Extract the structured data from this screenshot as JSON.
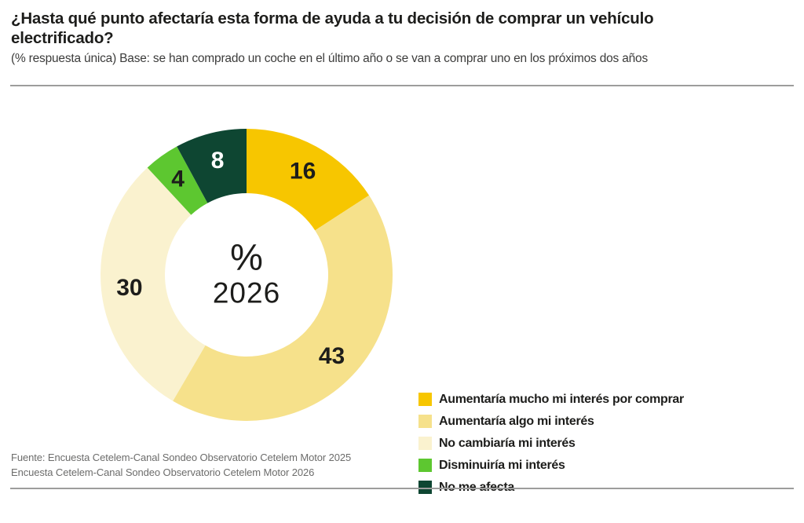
{
  "header": {
    "title": "¿Hasta qué punto afectaría esta forma de ayuda a tu decisión de comprar un vehículo electrificado?",
    "subtitle": "(% respuesta única) Base: se han comprado un coche en el último año o se van a comprar uno en los próximos dos años"
  },
  "chart_data": {
    "type": "pie",
    "variant": "donut",
    "start_angle_deg": 0,
    "direction": "clockwise",
    "center_label": "%",
    "center_sublabel": "2026",
    "legend_position": "right",
    "unit": "%",
    "categories": [
      "Aumentaría mucho mi interés por comprar",
      "Aumentaría algo mi interés",
      "No cambiaría mi interés",
      "Disminuiría mi interés",
      "No me afecta"
    ],
    "values": [
      16,
      43,
      30,
      4,
      8
    ],
    "segments": [
      {
        "label": "Aumentaría mucho mi interés por comprar",
        "value": 16,
        "color": "#F7C600",
        "value_label_color": "#1D1D1B"
      },
      {
        "label": "Aumentaría algo mi interés",
        "value": 43,
        "color": "#F6E18B",
        "value_label_color": "#1D1D1B"
      },
      {
        "label": "No cambiaría mi interés",
        "value": 30,
        "color": "#FAF2CF",
        "value_label_color": "#1D1D1B"
      },
      {
        "label": "Disminuiría mi interés",
        "value": 4,
        "color": "#5DC730",
        "value_label_color": "#1D1D1B"
      },
      {
        "label": "No me afecta",
        "value": 8,
        "color": "#0E4632",
        "value_label_color": "#FFFFFF"
      }
    ]
  },
  "footer": {
    "line1": "Fuente: Encuesta Cetelem-Canal Sondeo Observatorio Cetelem Motor 2025",
    "line2": "Encuesta Cetelem-Canal Sondeo Observatorio Cetelem Motor 2026"
  }
}
